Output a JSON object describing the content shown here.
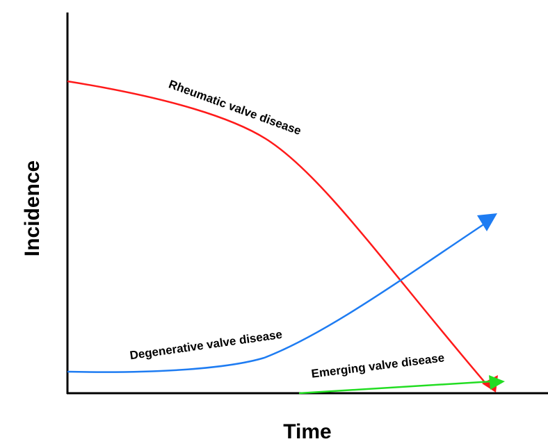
{
  "axes": {
    "x_label": "Time",
    "y_label": "Incidence"
  },
  "curves": [
    {
      "label": "Rheumatic valve disease"
    },
    {
      "label": "Degenerative valve disease"
    },
    {
      "label": "Emerging valve disease"
    }
  ]
}
